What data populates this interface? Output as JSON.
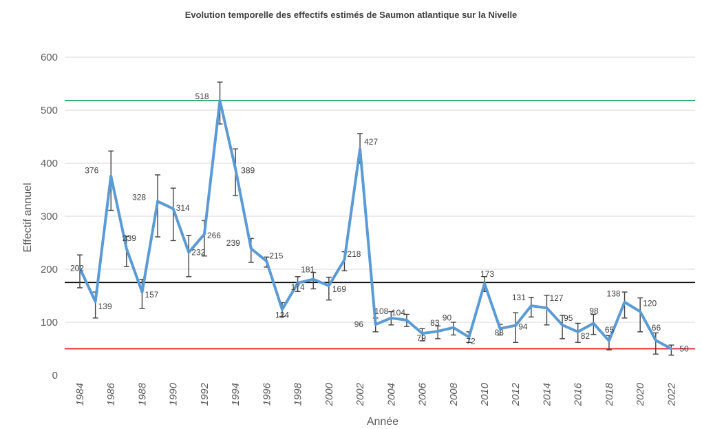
{
  "chart_data": {
    "type": "line",
    "title": "Evolution temporelle des effectifs estimés de Saumon atlantique sur la Nivelle",
    "xlabel": "Année",
    "ylabel": "Effectif annuel",
    "ylim": [
      0,
      600
    ],
    "yticks": [
      0,
      100,
      200,
      300,
      400,
      500,
      600
    ],
    "xticks": [
      1984,
      1986,
      1988,
      1990,
      1992,
      1994,
      1996,
      1998,
      2000,
      2002,
      2004,
      2006,
      2008,
      2010,
      2012,
      2014,
      2016,
      2018,
      2020,
      2022
    ],
    "xlim": [
      1984,
      2023
    ],
    "grid": true,
    "series": [
      {
        "name": "Effectif annuel",
        "color": "#5b9bd5",
        "x": [
          1984,
          1985,
          1986,
          1987,
          1988,
          1989,
          1990,
          1991,
          1992,
          1993,
          1994,
          1995,
          1996,
          1997,
          1998,
          1999,
          2000,
          2001,
          2002,
          2003,
          2004,
          2005,
          2006,
          2007,
          2008,
          2009,
          2010,
          2011,
          2012,
          2013,
          2014,
          2015,
          2016,
          2017,
          2018,
          2019,
          2020,
          2021,
          2022
        ],
        "values": [
          202,
          139,
          376,
          239,
          157,
          328,
          314,
          232,
          266,
          518,
          389,
          239,
          215,
          124,
          174,
          181,
          169,
          218,
          427,
          96,
          108,
          104,
          79,
          83,
          90,
          72,
          173,
          88,
          94,
          131,
          127,
          95,
          82,
          98,
          65,
          138,
          120,
          66,
          50
        ],
        "labels": [
          "202",
          "139",
          "376",
          "239",
          "157",
          "328",
          "314",
          "232",
          "266",
          "518",
          "389",
          "239",
          "215",
          "124",
          "174",
          "181",
          "169",
          "218",
          "427",
          "96",
          "108",
          "104",
          "79",
          "83",
          "90",
          "72",
          "173",
          "88",
          "94",
          "131",
          "127",
          "95",
          "82",
          "98",
          "65",
          "138",
          "120",
          "66",
          "50"
        ],
        "error_low": [
          165,
          108,
          311,
          205,
          126,
          261,
          254,
          186,
          225,
          474,
          339,
          213,
          204,
          111,
          158,
          163,
          142,
          197,
          400,
          82,
          95,
          92,
          65,
          69,
          76,
          62,
          158,
          76,
          62,
          110,
          95,
          69,
          62,
          77,
          48,
          108,
          82,
          40,
          38
        ],
        "error_high": [
          227,
          157,
          423,
          262,
          181,
          378,
          353,
          264,
          292,
          553,
          427,
          258,
          223,
          137,
          186,
          194,
          185,
          233,
          456,
          108,
          120,
          115,
          88,
          93,
          100,
          82,
          186,
          96,
          118,
          147,
          151,
          113,
          98,
          115,
          75,
          157,
          146,
          80,
          57
        ]
      }
    ],
    "reference_lines": [
      {
        "name": "upper-reference-line",
        "value": 518,
        "color": "#1fa05a"
      },
      {
        "name": "mean-reference-line",
        "value": 175,
        "color": "#000000"
      },
      {
        "name": "lower-reference-line",
        "value": 50,
        "color": "#e31a1c"
      }
    ]
  },
  "colors": {
    "gridline": "#d9d9d9",
    "errorbar": "#404040"
  }
}
